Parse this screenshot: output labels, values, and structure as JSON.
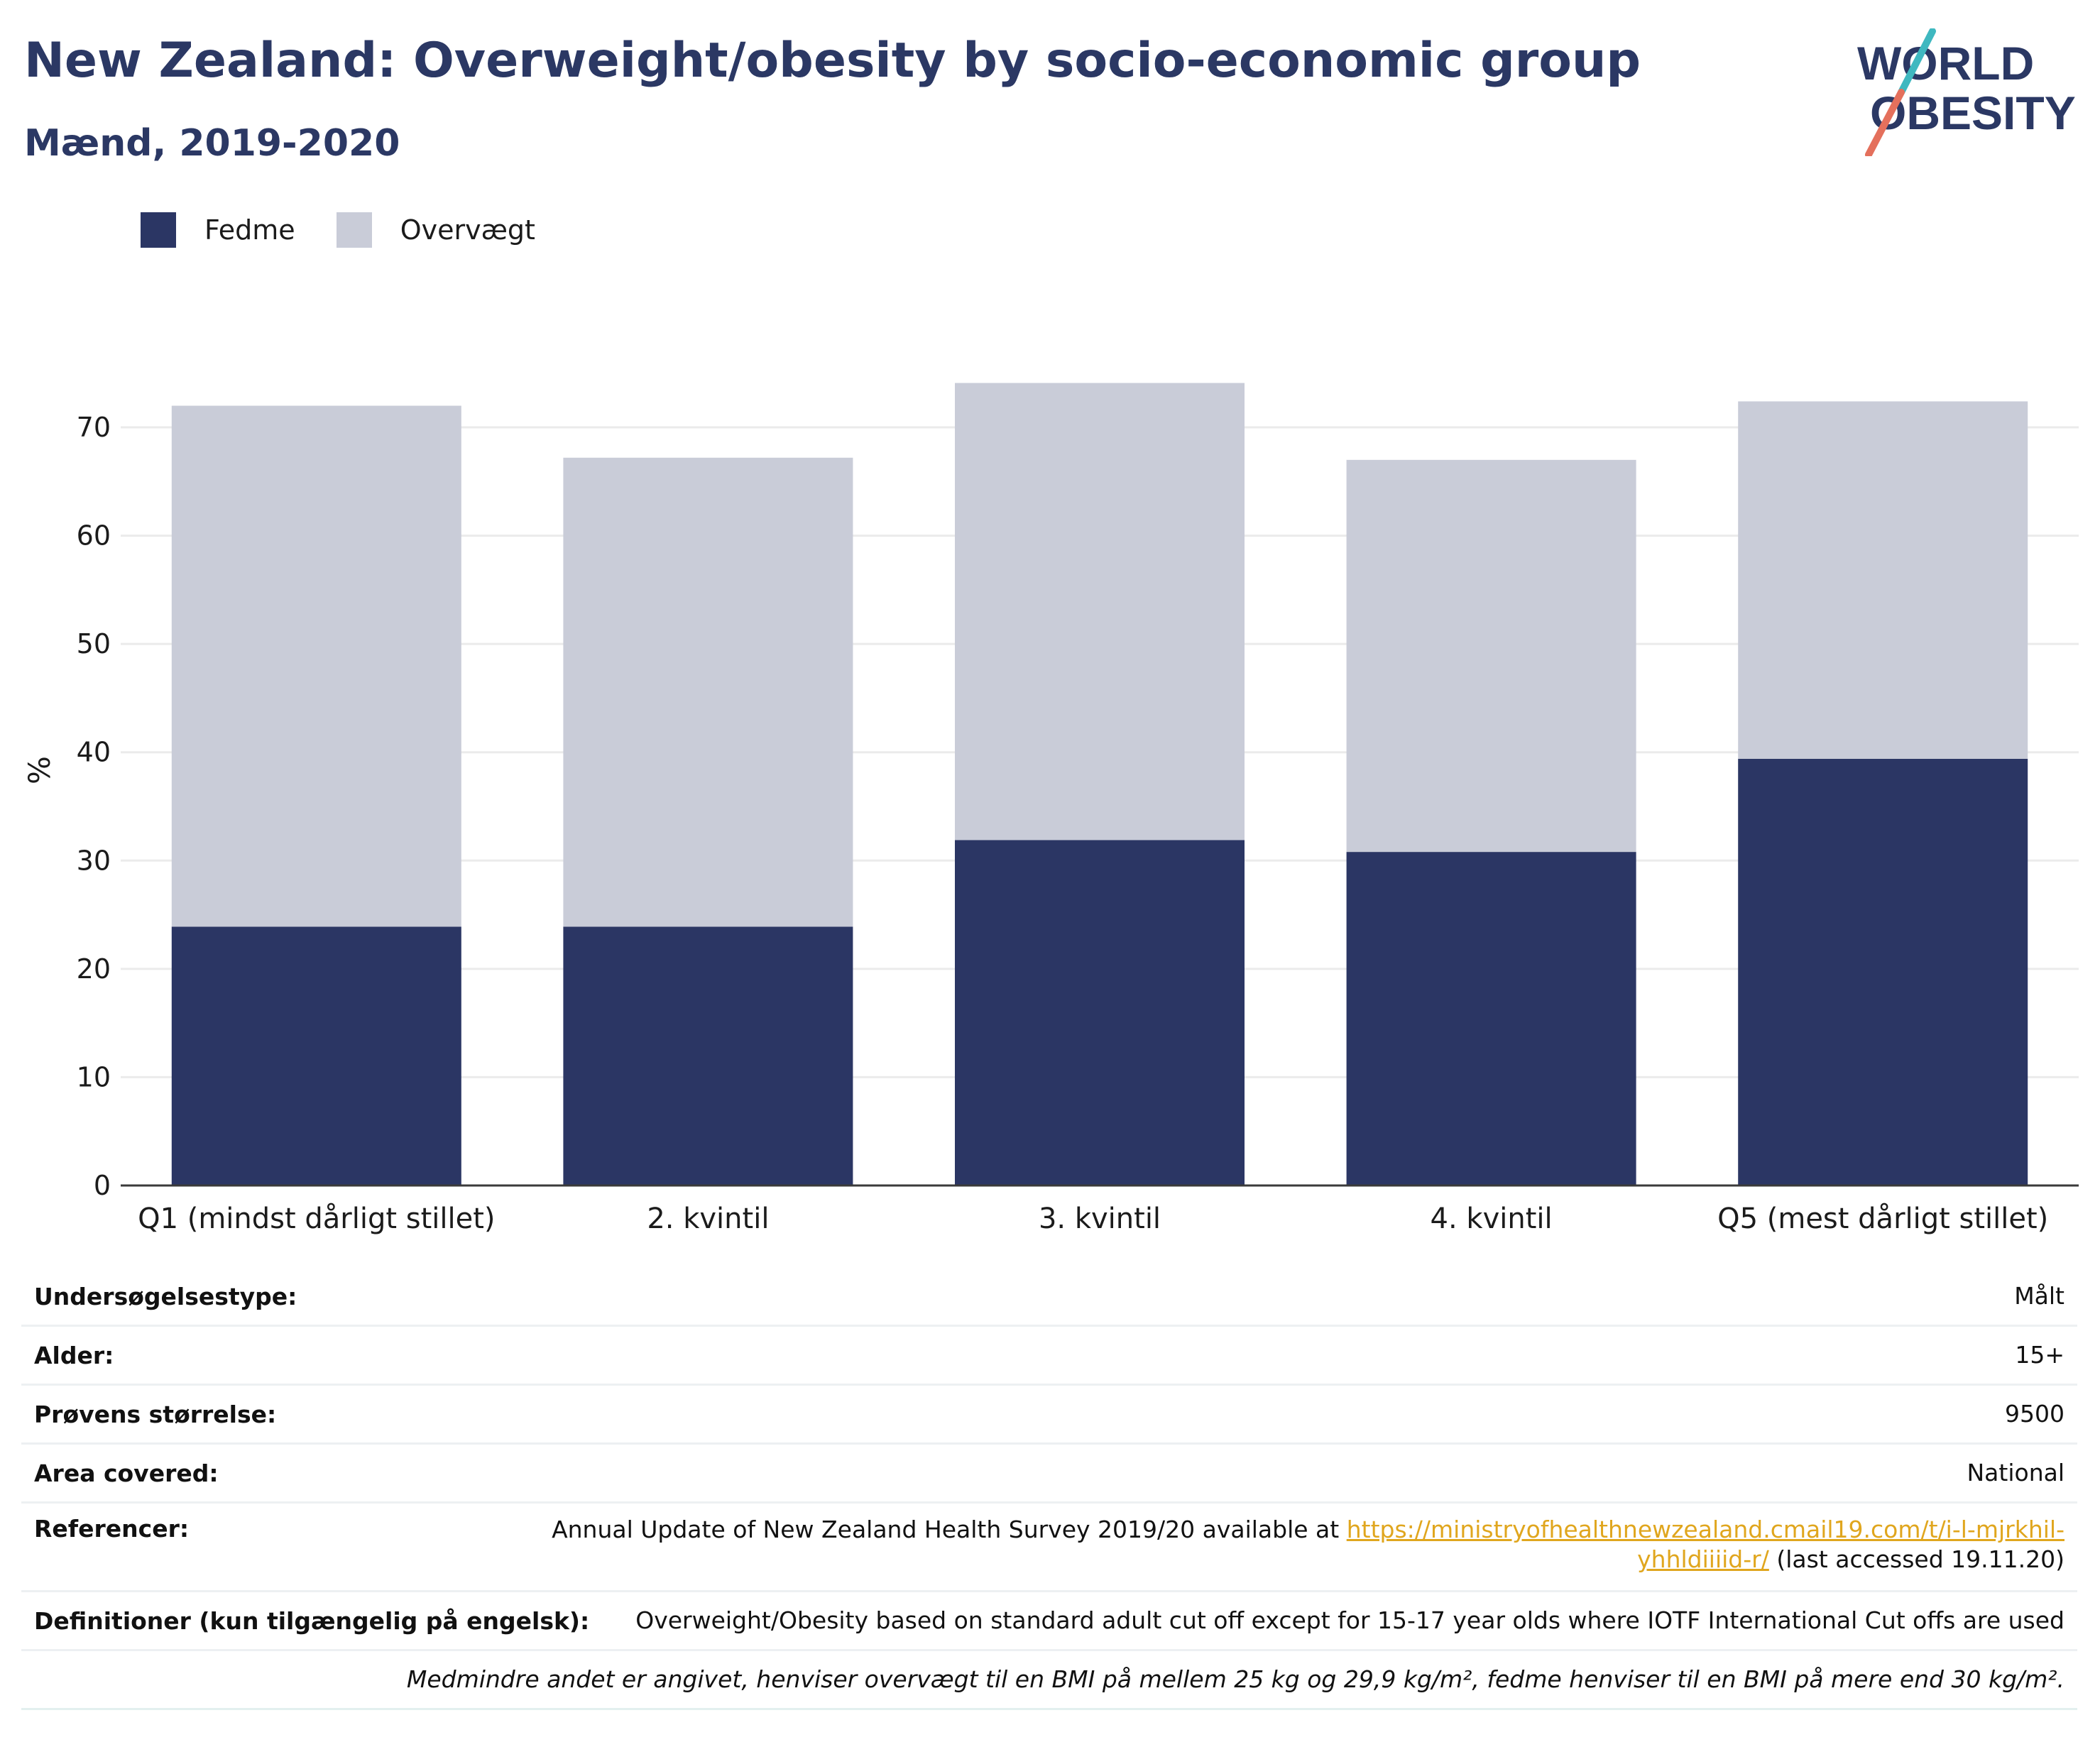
{
  "header": {
    "title": "New Zealand: Overweight/obesity by socio-economic group",
    "subtitle": "Mænd, 2019-2020"
  },
  "logo": {
    "text_line1": "WORLD",
    "text_line2": "OBESITY",
    "color_text": "#2b3864",
    "color_slash_top": "#3fb8c0",
    "color_slash_bottom": "#e4705c"
  },
  "legend": [
    {
      "label": "Fedme",
      "color": "#2b3664"
    },
    {
      "label": "Overvægt",
      "color": "#c9ccd8"
    }
  ],
  "chart_data": {
    "type": "bar",
    "stacked": true,
    "categories": [
      "Q1 (mindst dårligt stillet)",
      "2. kvintil",
      "3. kvintil",
      "4. kvintil",
      "Q5 (mest dårligt stillet)"
    ],
    "series": [
      {
        "name": "Fedme",
        "color": "#2b3664",
        "values": [
          23.9,
          23.9,
          31.9,
          30.8,
          39.4
        ]
      },
      {
        "name": "Overvægt",
        "color": "#c9ccd8",
        "values": [
          48.1,
          43.3,
          42.2,
          36.2,
          33.0
        ]
      }
    ],
    "ylabel": "%",
    "xlabel": "",
    "ylim": [
      0,
      78
    ],
    "yticks": [
      0,
      10,
      20,
      30,
      40,
      50,
      60,
      70
    ],
    "grid": true,
    "legend_position": "top-left"
  },
  "info": {
    "rows": [
      {
        "label": "Undersøgelsestype:",
        "value": "Målt"
      },
      {
        "label": "Alder:",
        "value": "15+"
      },
      {
        "label": "Prøvens størrelse:",
        "value": "9500"
      },
      {
        "label": "Area covered:",
        "value": "National"
      }
    ],
    "reference": {
      "label": "Referencer:",
      "text_before": "Annual Update of New Zealand Health Survey 2019/20 available at ",
      "link_line1": "https://ministryofhealthnewzealand.cmail19.com/t/i-l-mjrkhil-",
      "link_line2": "yhhldiiiid-r/",
      "text_after": " (last accessed 19.11.20)"
    },
    "definitions": {
      "label": "Definitioner (kun tilgængelig på engelsk):",
      "value": "Overweight/Obesity based on standard adult cut off except for 15-17 year olds where IOTF International Cut offs are used"
    },
    "footnote": "Medmindre andet er angivet, henviser overvægt til en BMI på mellem 25 kg og 29,9 kg/m², fedme henviser til en BMI på mere end 30 kg/m²."
  }
}
